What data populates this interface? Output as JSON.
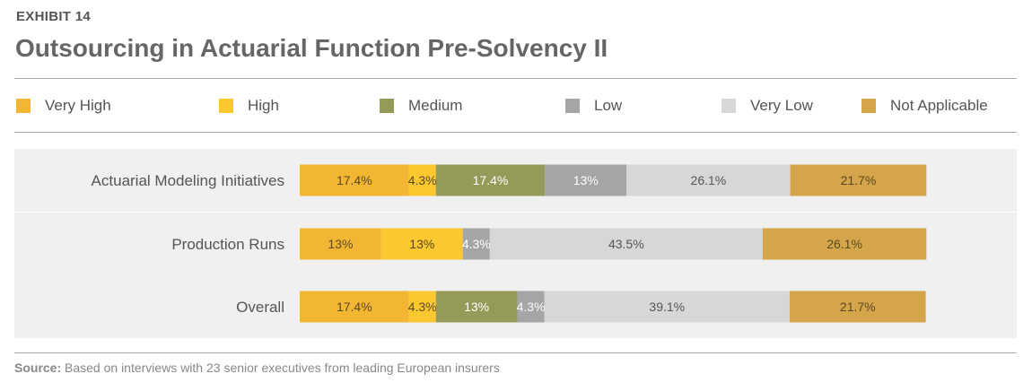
{
  "header": {
    "exhibit": "EXHIBIT 14",
    "title": "Outsourcing in Actuarial Function Pre-Solvency II"
  },
  "legend": [
    {
      "label": "Very High",
      "color": "#f2b632"
    },
    {
      "label": "High",
      "color": "#fbc92f"
    },
    {
      "label": "Medium",
      "color": "#969a58"
    },
    {
      "label": "Low",
      "color": "#a3a5a6"
    },
    {
      "label": "Very Low",
      "color": "#d6d7d8"
    },
    {
      "label": "Not Applicable",
      "color": "#d4a54a"
    }
  ],
  "chart_data": {
    "type": "bar",
    "orientation": "horizontal",
    "stacked": true,
    "categories": [
      "Actuarial Modeling Initiatives",
      "Production Runs",
      "Overall"
    ],
    "series": [
      {
        "name": "Very High",
        "values": [
          17.4,
          13,
          17.4
        ],
        "labels": [
          "17.4%",
          "13%",
          "17.4%"
        ]
      },
      {
        "name": "High",
        "values": [
          4.3,
          13,
          4.3
        ],
        "labels": [
          "4.3%",
          "13%",
          "4.3%"
        ]
      },
      {
        "name": "Medium",
        "values": [
          17.4,
          0,
          13
        ],
        "labels": [
          "17.4%",
          "",
          "13%"
        ]
      },
      {
        "name": "Low",
        "values": [
          13,
          4.3,
          4.3
        ],
        "labels": [
          "13%",
          "4.3%",
          "4.3%"
        ]
      },
      {
        "name": "Very Low",
        "values": [
          26.1,
          43.5,
          39.1
        ],
        "labels": [
          "26.1%",
          "43.5%",
          "39.1%"
        ]
      },
      {
        "name": "Not Applicable",
        "values": [
          21.7,
          26.1,
          21.7
        ],
        "labels": [
          "21.7%",
          "26.1%",
          "21.7%"
        ]
      }
    ],
    "xlim": [
      0,
      100
    ]
  },
  "footer": {
    "source_label": "Source:",
    "source_text": " Based on interviews with 23 senior executives from leading European insurers"
  }
}
